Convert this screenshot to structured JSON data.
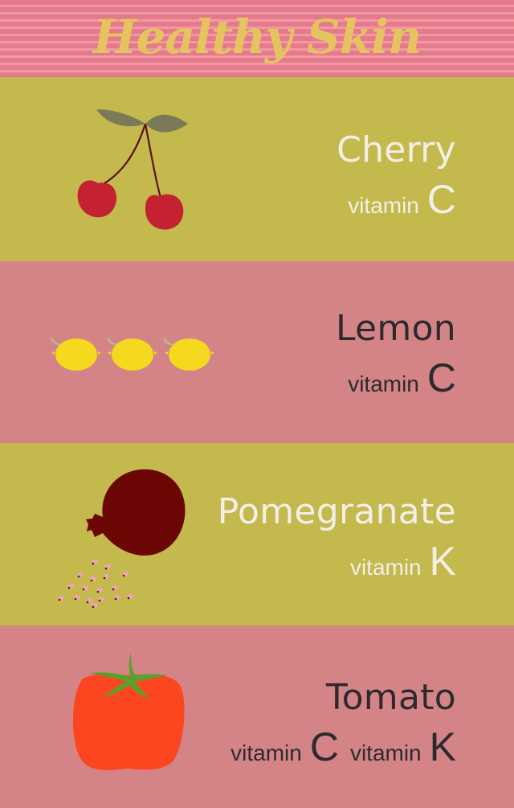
{
  "title": "Healthy Skin",
  "colors": {
    "header_stripe_dark": "#e77a8a",
    "header_stripe_light": "#ee9aa6",
    "title": "#e5c45f",
    "olive_band": "#c3b94d",
    "pink_band": "#d48486",
    "light_text": "#f3efe7",
    "dark_text": "#2d2a2e"
  },
  "rows": [
    {
      "name": "Cherry",
      "icon": "cherry-icon",
      "band": "olive",
      "vitamins": [
        {
          "word": "vitamin",
          "letter": "C"
        }
      ]
    },
    {
      "name": "Lemon",
      "icon": "lemon-icon",
      "band": "pink",
      "vitamins": [
        {
          "word": "vitamin",
          "letter": "C"
        }
      ]
    },
    {
      "name": "Pomegranate",
      "icon": "pomegranate-icon",
      "band": "olive",
      "vitamins": [
        {
          "word": "vitamin",
          "letter": "K"
        }
      ]
    },
    {
      "name": "Tomato",
      "icon": "tomato-icon",
      "band": "pink",
      "vitamins": [
        {
          "word": "vitamin",
          "letter": "C"
        },
        {
          "word": "vitamin",
          "letter": "K"
        }
      ]
    }
  ]
}
